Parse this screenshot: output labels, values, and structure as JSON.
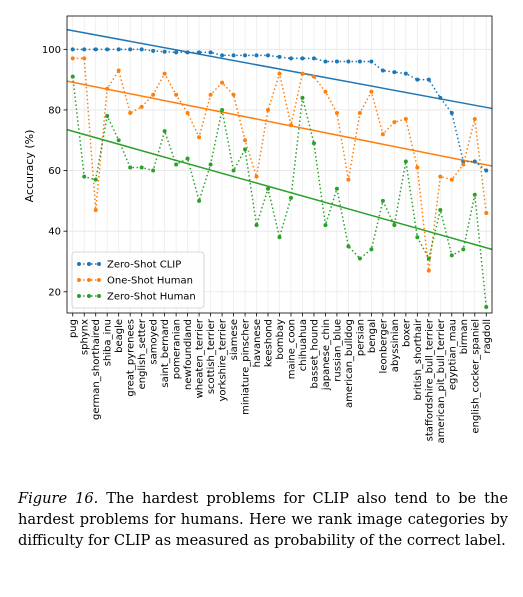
{
  "chart_data": {
    "type": "line",
    "ylabel": "Accuracy (%)",
    "ylim": [
      13,
      111
    ],
    "yticks": [
      20,
      40,
      60,
      80,
      100
    ],
    "grid": true,
    "legend_position": "lower-left",
    "categories": [
      "pug",
      "sphynx",
      "german_shorthaired",
      "shiba_inu",
      "beagle",
      "great_pyrenees",
      "english_setter",
      "samoyed",
      "saint_bernard",
      "pomeranian",
      "newfoundland",
      "wheaten_terrier",
      "scottish_terrier",
      "yorkshire_terrier",
      "siamese",
      "miniature_pinscher",
      "havanese",
      "keeshond",
      "bombay",
      "maine_coon",
      "chihuahua",
      "basset_hound",
      "japanese_chin",
      "russian_blue",
      "american_bulldog",
      "persian",
      "bengal",
      "leonberger",
      "abyssinian",
      "boxer",
      "british_shorthair",
      "staffordshire_bull_terrier",
      "american_pit_bull_terrier",
      "egyptian_mau",
      "birman",
      "english_cocker_spaniel",
      "ragdoll"
    ],
    "series": [
      {
        "name": "Zero-Shot CLIP",
        "color": "#1f77b4",
        "values": [
          100,
          100,
          100,
          100,
          100,
          100,
          100,
          99.5,
          99.2,
          99,
          99,
          99,
          99,
          98,
          98,
          98,
          98,
          98,
          97.5,
          97,
          97,
          97,
          96,
          96,
          96,
          96,
          96,
          93,
          92.5,
          92,
          90,
          90,
          84,
          79,
          63,
          63,
          60
        ],
        "trend": [
          106.5,
          80.5
        ]
      },
      {
        "name": "One-Shot Human",
        "color": "#ff7f0e",
        "values": [
          97,
          97,
          47,
          87,
          93,
          79,
          81,
          85,
          92,
          85,
          79,
          71,
          85,
          89,
          85,
          70,
          58,
          80,
          92,
          75,
          92,
          91,
          86,
          79,
          57,
          79,
          86,
          72,
          76,
          77,
          61,
          27,
          58,
          57,
          62,
          77,
          46
        ],
        "trend": [
          89.5,
          61.5
        ]
      },
      {
        "name": "Zero-Shot Human",
        "color": "#2ca02c",
        "values": [
          91,
          58,
          57,
          78,
          70,
          61,
          61,
          60,
          73,
          62,
          64,
          50,
          62,
          80,
          60,
          67,
          42,
          54,
          38,
          51,
          84,
          69,
          42,
          54,
          35,
          31,
          34,
          50,
          42,
          63,
          38,
          31,
          47,
          32,
          34,
          52,
          15
        ],
        "trend": [
          73.5,
          34
        ]
      }
    ]
  },
  "caption": {
    "figure_label": "Figure 16.",
    "text": "The hardest problems for CLIP also tend to be the hardest problems for humans. Here we rank image categories by difficulty for CLIP as measured as probability of the correct label."
  }
}
